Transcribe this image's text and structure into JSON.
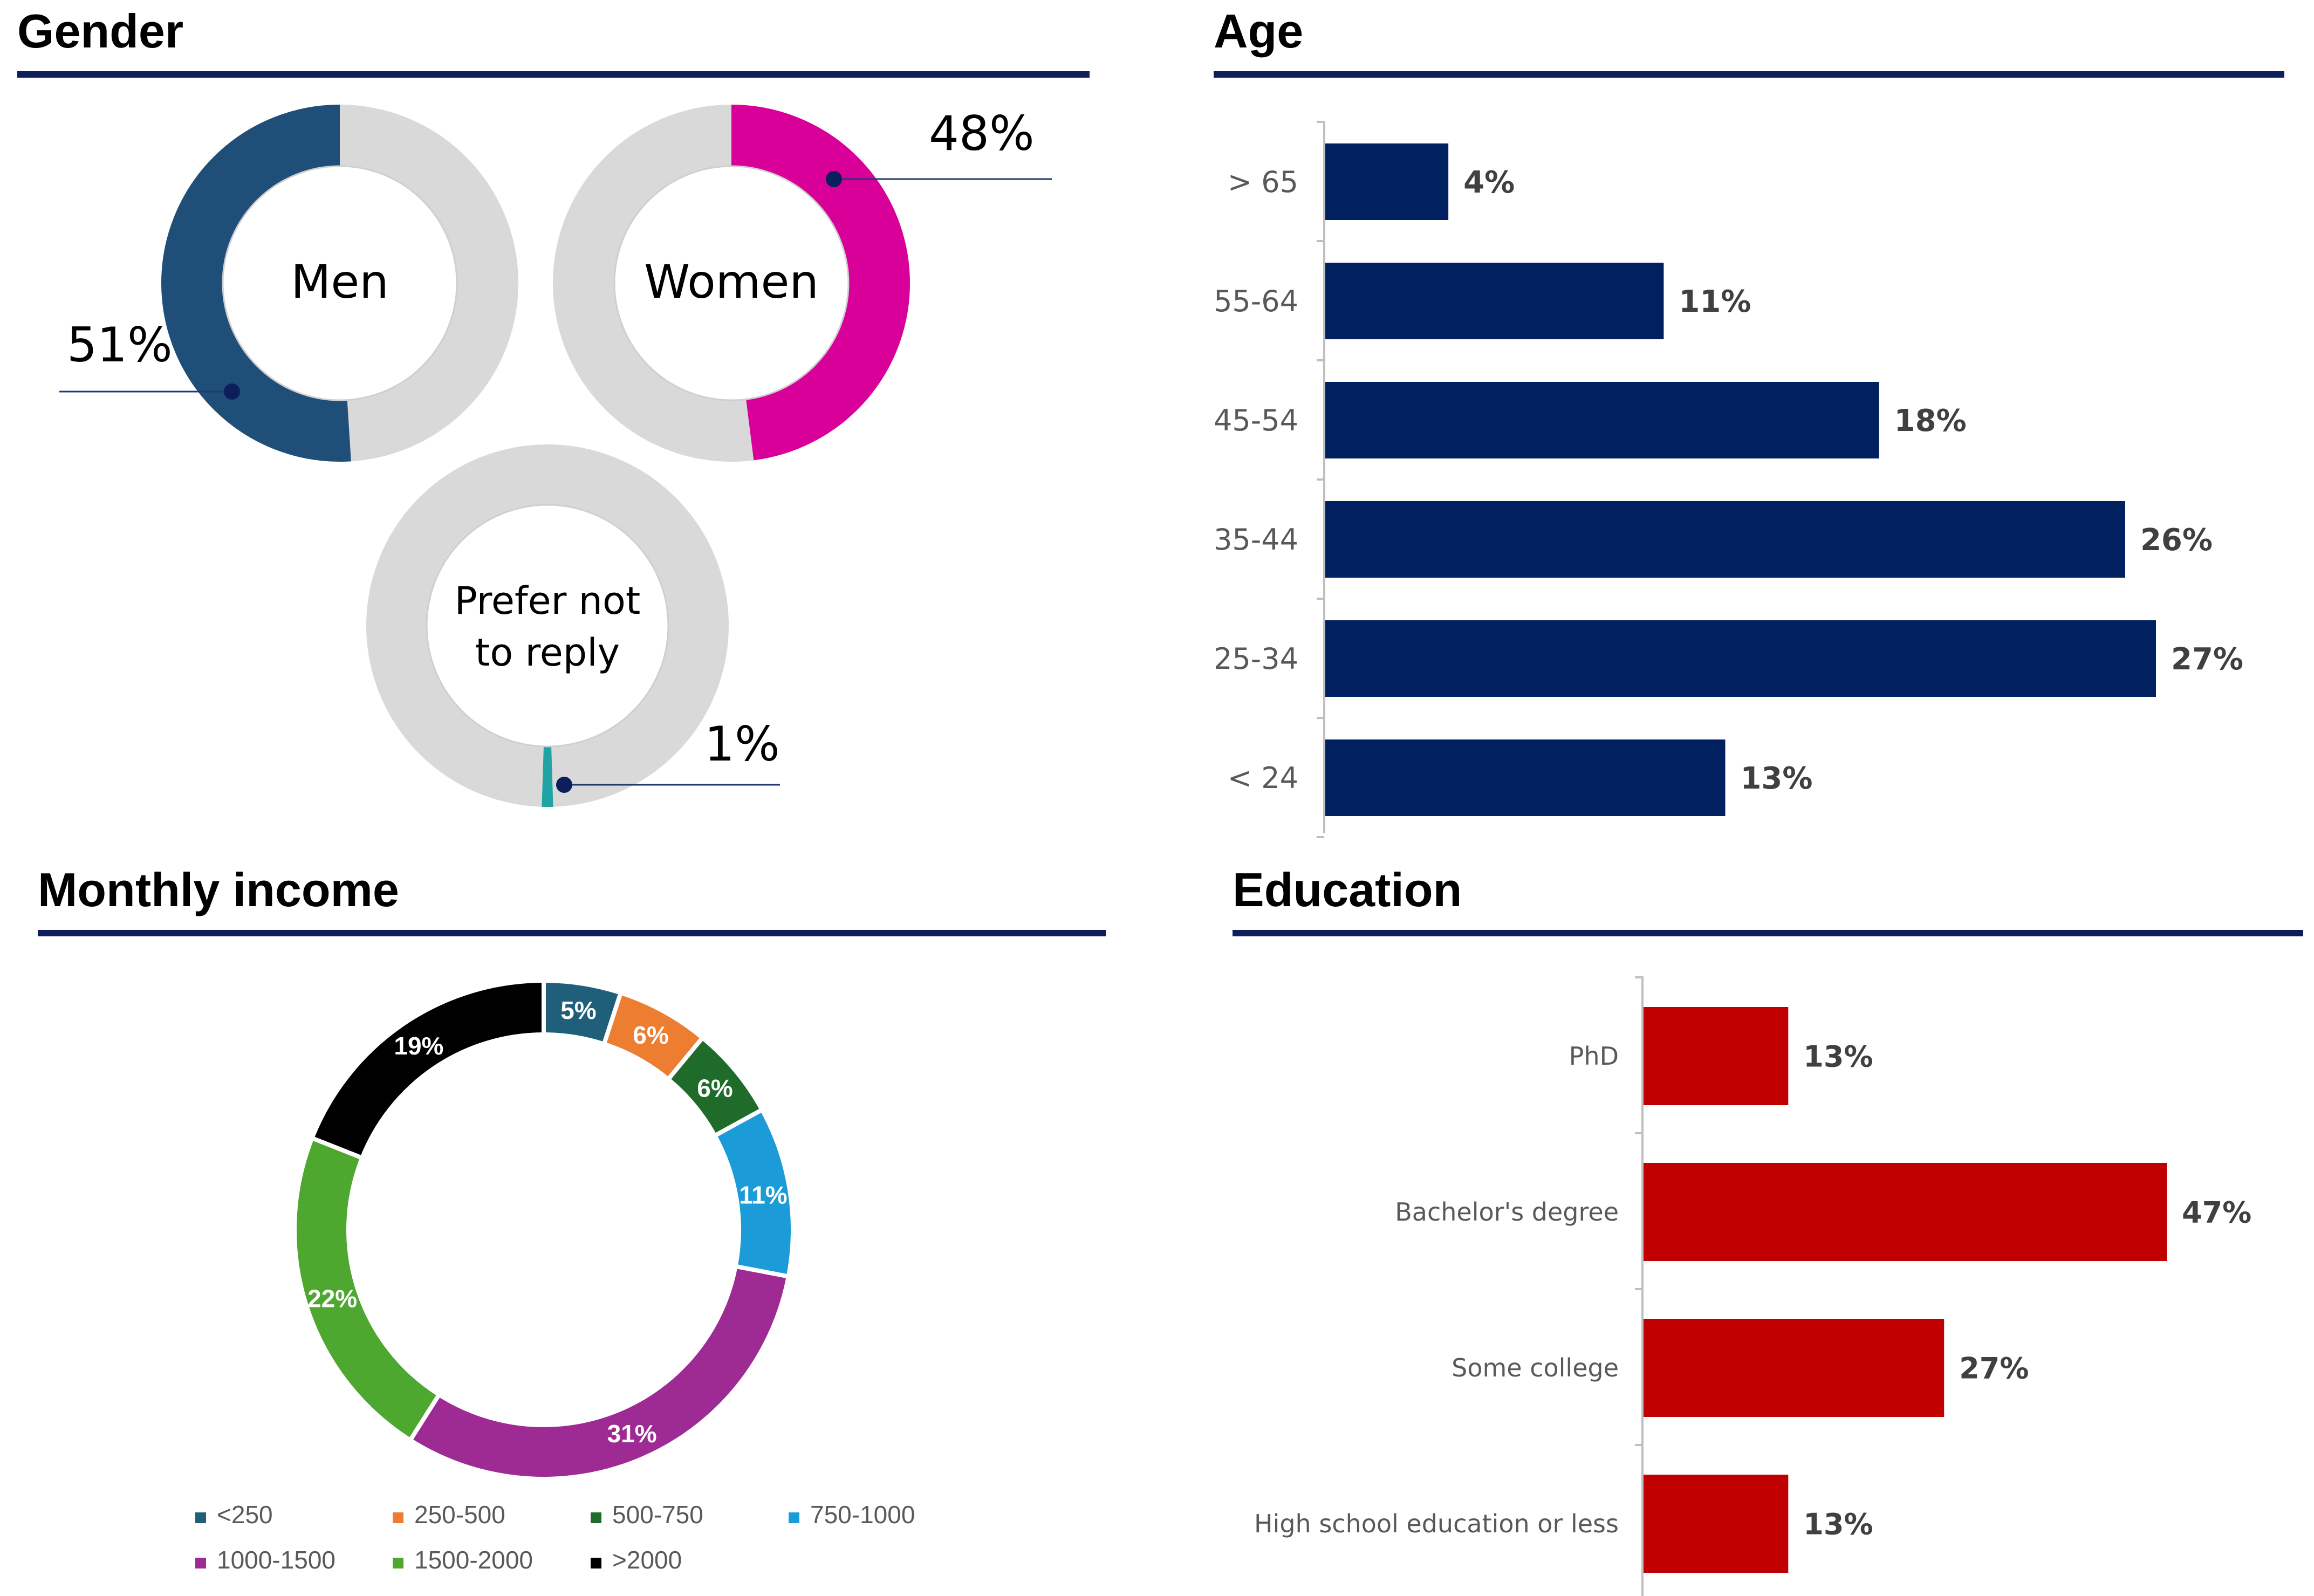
{
  "colors": {
    "heading_rule": "#0c1f5c",
    "ring_bg": "#d9d9d9",
    "men": "#1f4e79",
    "women": "#d9009a",
    "prefer_not": "#1fa3a3",
    "age_bar": "#002060",
    "education_bar": "#c00000",
    "leader": "#1f3a73",
    "axis": "#bfbfbf"
  },
  "gender": {
    "title": "Gender",
    "men": {
      "label": "Men",
      "value": 51,
      "value_label": "51%"
    },
    "women": {
      "label": "Women",
      "value": 48,
      "value_label": "48%"
    },
    "prefer_not": {
      "label_line1": "Prefer not",
      "label_line2": "to reply",
      "value": 1,
      "value_label": "1%"
    }
  },
  "age": {
    "title": "Age",
    "chart_data": {
      "type": "bar",
      "orientation": "horizontal",
      "categories": [
        "> 65",
        "55-64",
        "45-54",
        "35-44",
        "25-34",
        "< 24"
      ],
      "values": [
        4,
        11,
        18,
        26,
        27,
        13
      ],
      "value_labels": [
        "4%",
        "11%",
        "18%",
        "26%",
        "27%",
        "13%"
      ],
      "xlim": [
        0,
        27
      ]
    }
  },
  "income": {
    "title": "Monthly income",
    "chart_data": {
      "type": "pie",
      "style": "donut",
      "categories": [
        "<250",
        "250-500",
        "500-750",
        "750-1000",
        "1000-1500",
        "1500-2000",
        ">2000"
      ],
      "values": [
        5,
        6,
        6,
        11,
        31,
        22,
        19
      ],
      "value_labels": [
        "5%",
        "6%",
        "6%",
        "11%",
        "31%",
        "22%",
        "19%"
      ],
      "colors": [
        "#1f5f7a",
        "#ed7d31",
        "#1e6b2a",
        "#1b9cd8",
        "#9e2a93",
        "#4ea72e",
        "#000000"
      ],
      "legend_position": "bottom"
    }
  },
  "education": {
    "title": "Education",
    "chart_data": {
      "type": "bar",
      "orientation": "horizontal",
      "categories": [
        "PhD",
        "Bachelor's degree",
        "Some college",
        "High school education or less"
      ],
      "values": [
        13,
        47,
        27,
        13
      ],
      "value_labels": [
        "13%",
        "47%",
        "27%",
        "13%"
      ],
      "xlim": [
        0,
        47
      ]
    }
  }
}
